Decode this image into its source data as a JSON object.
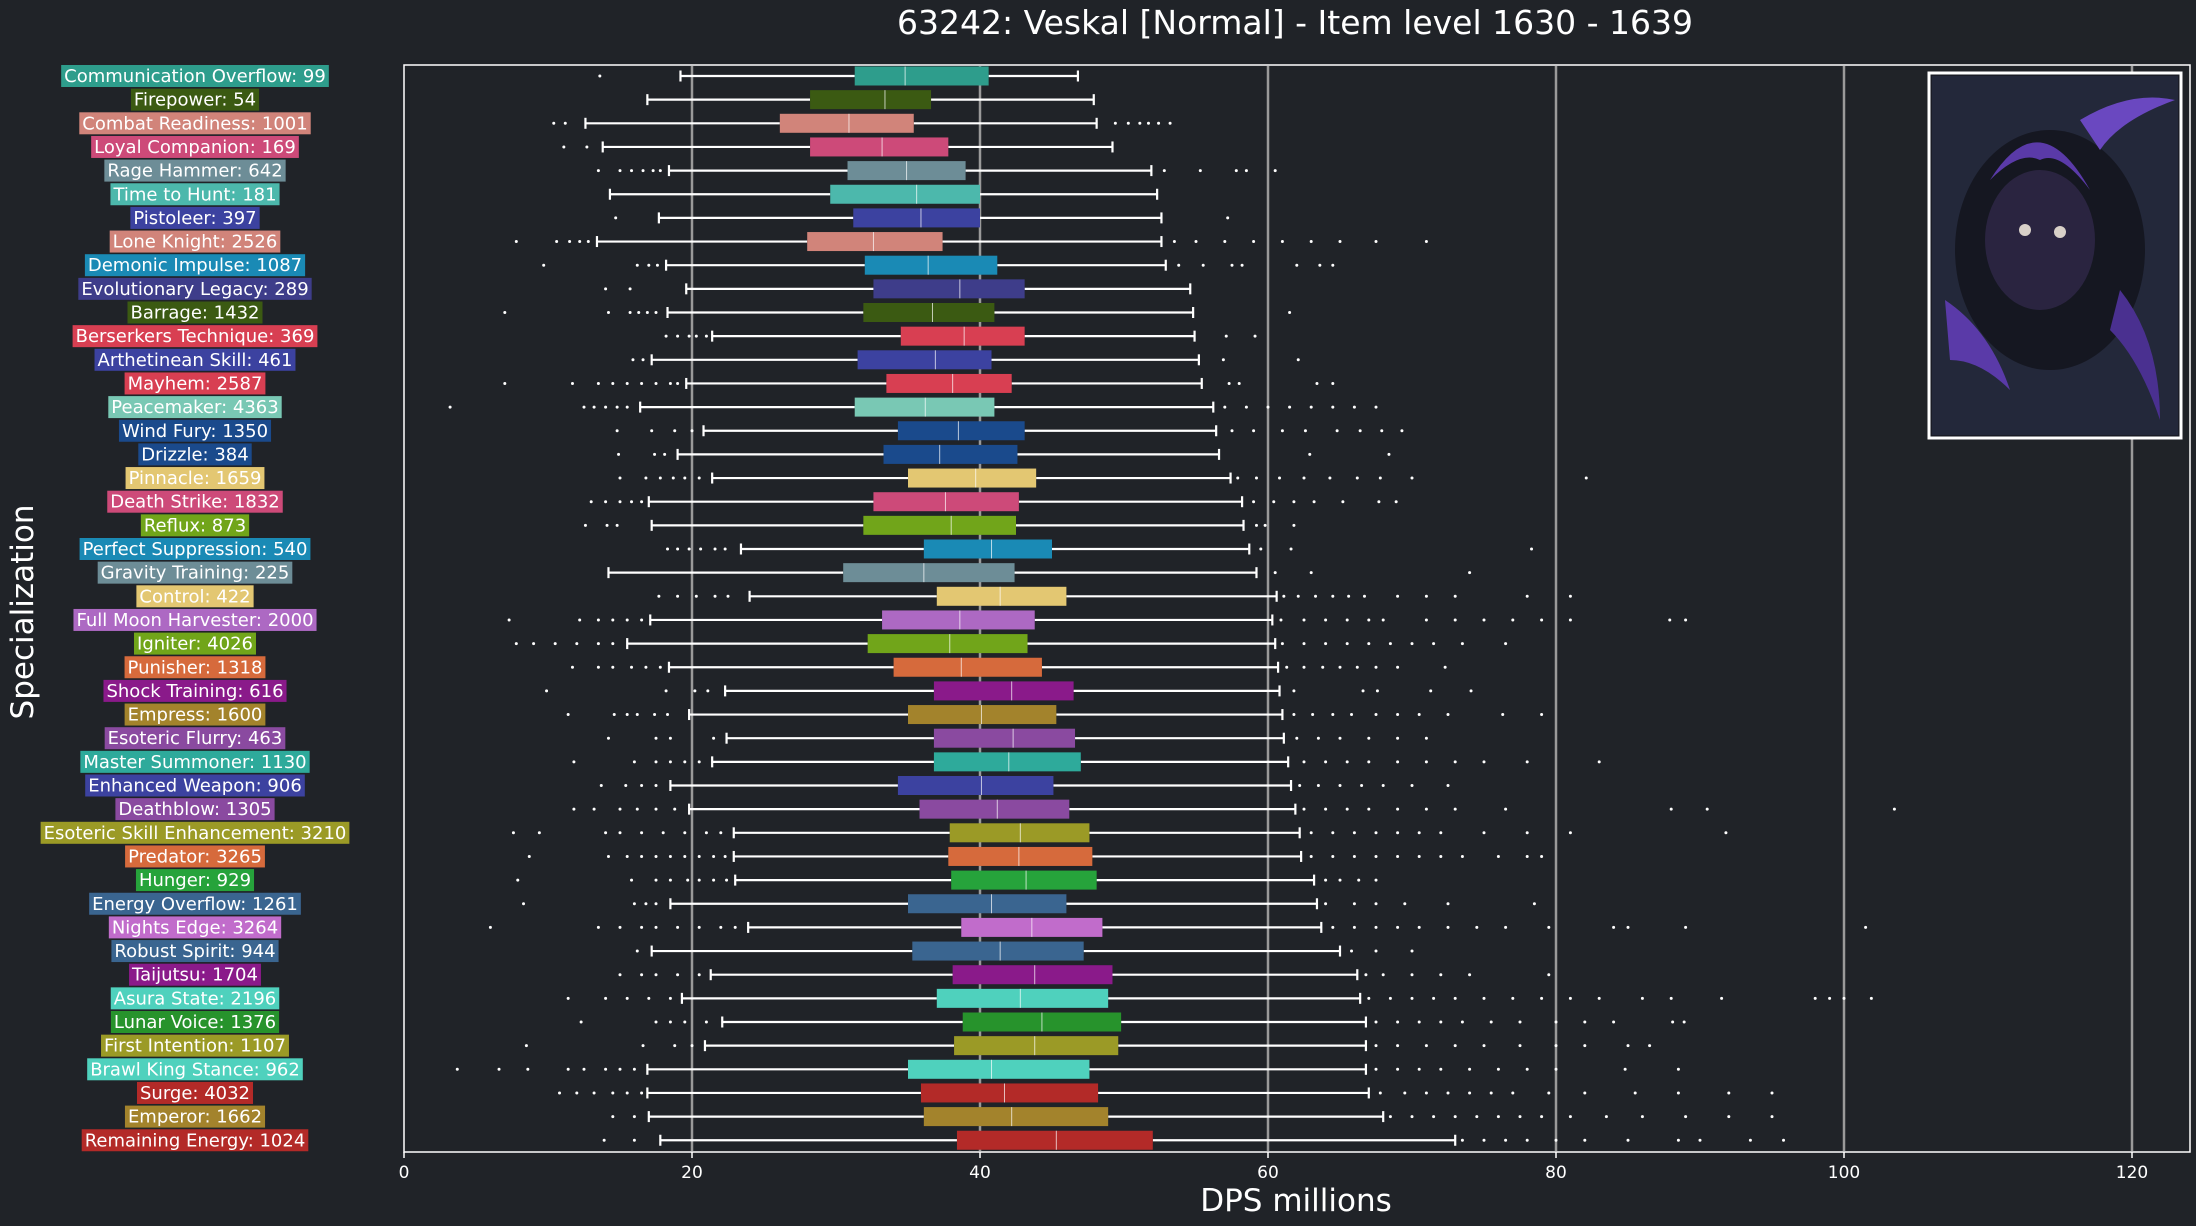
{
  "chart_data": {
    "type": "boxplot",
    "title": "63242: Veskal [Normal] - Item level 1630 - 1639",
    "xlabel": "DPS millions",
    "ylabel": "Specialization",
    "xlim": [
      0,
      124
    ],
    "xticks": [
      0,
      20,
      40,
      60,
      80,
      100,
      120
    ],
    "grid": "vertical",
    "legend": "none",
    "series": [
      {
        "name": "Communication Overflow: 99",
        "color": "#2e9d8c",
        "whislo": 19.2,
        "q1": 31.3,
        "med": 34.8,
        "q3": 40.6,
        "whishi": 46.8,
        "fliers": [
          13.6
        ]
      },
      {
        "name": "Firepower: 54",
        "color": "#3b5a12",
        "whislo": 16.9,
        "q1": 28.2,
        "med": 33.4,
        "q3": 36.6,
        "whishi": 47.9,
        "fliers": []
      },
      {
        "name": "Combat Readiness: 1001",
        "color": "#d1847a",
        "whislo": 12.6,
        "q1": 26.1,
        "med": 30.9,
        "q3": 35.4,
        "whishi": 48.1,
        "fliers": [
          10.4,
          11.2,
          49.4,
          50.3,
          51.1,
          51.7,
          52.4,
          53.2
        ]
      },
      {
        "name": "Loyal Companion: 169",
        "color": "#cd4a79",
        "whislo": 13.8,
        "q1": 28.2,
        "med": 33.2,
        "q3": 37.8,
        "whishi": 49.2,
        "fliers": [
          11.1,
          12.7
        ]
      },
      {
        "name": "Rage Hammer: 642",
        "color": "#6d8d97",
        "whislo": 18.4,
        "q1": 30.8,
        "med": 34.9,
        "q3": 39.0,
        "whishi": 51.9,
        "fliers": [
          13.5,
          15.0,
          15.8,
          16.6,
          17.3,
          17.8,
          52.8,
          55.3,
          57.8,
          58.5,
          60.5
        ]
      },
      {
        "name": "Time to Hunt: 181",
        "color": "#4cb8ac",
        "whislo": 14.3,
        "q1": 29.6,
        "med": 35.6,
        "q3": 40.0,
        "whishi": 52.3,
        "fliers": []
      },
      {
        "name": "Pistoleer: 397",
        "color": "#3c42a0",
        "whislo": 17.7,
        "q1": 31.2,
        "med": 35.9,
        "q3": 40.0,
        "whishi": 52.6,
        "fliers": [
          14.7,
          57.2
        ]
      },
      {
        "name": "Lone Knight: 2526",
        "color": "#d1847a",
        "whislo": 13.4,
        "q1": 28.0,
        "med": 32.6,
        "q3": 37.4,
        "whishi": 52.6,
        "fliers": [
          7.8,
          10.6,
          11.5,
          12.2,
          12.8,
          53.5,
          55.0,
          57.0,
          59.0,
          61.0,
          63.0,
          65.0,
          67.5,
          71.0
        ]
      },
      {
        "name": "Demonic Impulse: 1087",
        "color": "#1a8ab5",
        "whislo": 18.2,
        "q1": 32.0,
        "med": 36.4,
        "q3": 41.2,
        "whishi": 52.9,
        "fliers": [
          9.7,
          16.2,
          17.0,
          17.6,
          53.8,
          55.5,
          57.5,
          58.2,
          62.0,
          63.6,
          64.5
        ]
      },
      {
        "name": "Evolutionary Legacy: 289",
        "color": "#3e3d8a",
        "whislo": 19.6,
        "q1": 32.6,
        "med": 38.6,
        "q3": 43.1,
        "whishi": 54.6,
        "fliers": [
          14.0,
          15.7
        ]
      },
      {
        "name": "Barrage: 1432",
        "color": "#3b5a12",
        "whislo": 18.3,
        "q1": 31.9,
        "med": 36.7,
        "q3": 41.0,
        "whishi": 54.8,
        "fliers": [
          7.0,
          14.2,
          15.7,
          16.3,
          16.9,
          17.5,
          61.5
        ]
      },
      {
        "name": "Berserkers Technique: 369",
        "color": "#d83f52",
        "whislo": 21.4,
        "q1": 34.5,
        "med": 38.9,
        "q3": 43.1,
        "whishi": 54.9,
        "fliers": [
          18.2,
          19.0,
          19.8,
          20.3,
          21.0,
          57.1,
          59.1
        ]
      },
      {
        "name": "Arthetinean Skill: 461",
        "color": "#3c42a0",
        "whislo": 17.2,
        "q1": 31.5,
        "med": 36.9,
        "q3": 40.8,
        "whishi": 55.2,
        "fliers": [
          15.9,
          16.6,
          56.9,
          62.1
        ]
      },
      {
        "name": "Mayhem: 2587",
        "color": "#d83f52",
        "whislo": 19.6,
        "q1": 33.5,
        "med": 38.1,
        "q3": 42.2,
        "whishi": 55.4,
        "fliers": [
          7.0,
          11.7,
          13.5,
          14.5,
          15.5,
          16.5,
          17.5,
          18.5,
          19.0,
          57.3,
          58.0,
          63.4,
          64.5
        ]
      },
      {
        "name": "Peacemaker: 4363",
        "color": "#79c8b4",
        "whislo": 16.4,
        "q1": 31.3,
        "med": 36.2,
        "q3": 41.0,
        "whishi": 56.2,
        "fliers": [
          3.2,
          12.5,
          13.2,
          14.0,
          14.8,
          15.5,
          57.0,
          58.5,
          60.0,
          61.5,
          63.0,
          64.5,
          66.0,
          67.5
        ]
      },
      {
        "name": "Wind Fury: 1350",
        "color": "#1a4a8c",
        "whislo": 20.8,
        "q1": 34.3,
        "med": 38.5,
        "q3": 43.1,
        "whishi": 56.4,
        "fliers": [
          14.8,
          17.2,
          18.8,
          20.0,
          57.5,
          59.0,
          61.0,
          62.6,
          64.8,
          66.4,
          67.9,
          69.3
        ]
      },
      {
        "name": "Drizzle: 384",
        "color": "#1a4a8c",
        "whislo": 19.0,
        "q1": 33.3,
        "med": 37.2,
        "q3": 42.6,
        "whishi": 56.6,
        "fliers": [
          14.9,
          17.4,
          18.1,
          62.9,
          68.4
        ]
      },
      {
        "name": "Pinnacle: 1659",
        "color": "#e3c772",
        "whislo": 21.4,
        "q1": 35.0,
        "med": 39.7,
        "q3": 43.9,
        "whishi": 57.4,
        "fliers": [
          15.0,
          16.8,
          17.8,
          18.7,
          19.5,
          20.5,
          57.9,
          59.2,
          60.8,
          62.5,
          64.3,
          66.2,
          67.8,
          70.0,
          82.1
        ]
      },
      {
        "name": "Death Strike: 1832",
        "color": "#cd4a79",
        "whislo": 17.0,
        "q1": 32.6,
        "med": 37.6,
        "q3": 42.7,
        "whishi": 58.2,
        "fliers": [
          13.0,
          14.0,
          15.0,
          15.8,
          16.5,
          59.0,
          60.4,
          61.8,
          63.2,
          65.2,
          67.7,
          68.9
        ]
      },
      {
        "name": "Reflux: 873",
        "color": "#71a51a",
        "whislo": 17.2,
        "q1": 31.9,
        "med": 38.0,
        "q3": 42.5,
        "whishi": 58.3,
        "fliers": [
          12.6,
          14.1,
          14.8,
          59.2,
          59.8,
          61.8
        ]
      },
      {
        "name": "Perfect Suppression: 540",
        "color": "#1a8ab5",
        "whislo": 23.4,
        "q1": 36.1,
        "med": 40.8,
        "q3": 45.0,
        "whishi": 58.7,
        "fliers": [
          18.3,
          19.0,
          19.8,
          20.6,
          21.6,
          22.3,
          59.5,
          61.6,
          78.3
        ]
      },
      {
        "name": "Gravity Training: 225",
        "color": "#6d8d97",
        "whislo": 14.2,
        "q1": 30.5,
        "med": 36.1,
        "q3": 42.4,
        "whishi": 59.2,
        "fliers": [
          60.5,
          63.0,
          74.0
        ]
      },
      {
        "name": "Control: 422",
        "color": "#e3c772",
        "whislo": 24.0,
        "q1": 37.0,
        "med": 41.4,
        "q3": 46.0,
        "whishi": 60.6,
        "fliers": [
          17.7,
          19.0,
          20.3,
          21.6,
          22.5,
          61.1,
          62.1,
          63.3,
          64.5,
          65.6,
          66.7,
          69.0,
          71.0,
          73.0,
          78.0,
          81.0
        ]
      },
      {
        "name": "Full Moon Harvester: 2000",
        "color": "#ad69c3",
        "whislo": 17.1,
        "q1": 33.2,
        "med": 38.6,
        "q3": 43.8,
        "whishi": 60.3,
        "fliers": [
          7.3,
          12.2,
          13.5,
          14.5,
          15.5,
          16.5,
          60.9,
          62.5,
          64.0,
          65.5,
          67.0,
          68.0,
          71.0,
          73.0,
          75.0,
          77.0,
          79.0,
          81.0,
          87.9,
          89.0
        ]
      },
      {
        "name": "Igniter: 4026",
        "color": "#71a51a",
        "whislo": 15.5,
        "q1": 32.2,
        "med": 37.9,
        "q3": 43.3,
        "whishi": 60.5,
        "fliers": [
          7.8,
          9.0,
          10.5,
          12.0,
          13.5,
          14.5,
          61.0,
          62.5,
          64.0,
          65.5,
          67.0,
          68.5,
          70.0,
          71.5,
          73.5,
          76.5
        ]
      },
      {
        "name": "Punisher: 1318",
        "color": "#d66a3c",
        "whislo": 18.4,
        "q1": 34.0,
        "med": 38.7,
        "q3": 44.3,
        "whishi": 60.7,
        "fliers": [
          11.7,
          13.5,
          14.5,
          15.8,
          16.8,
          17.8,
          61.3,
          62.5,
          63.8,
          65.0,
          66.2,
          67.5,
          69.0,
          72.3
        ]
      },
      {
        "name": "Shock Training: 616",
        "color": "#8a1a8a",
        "whislo": 22.3,
        "q1": 36.8,
        "med": 42.2,
        "q3": 46.5,
        "whishi": 60.8,
        "fliers": [
          9.9,
          18.2,
          20.2,
          21.1,
          61.8,
          66.6,
          67.6,
          71.3,
          74.1
        ]
      },
      {
        "name": "Empress: 1600",
        "color": "#a3832c",
        "whislo": 19.8,
        "q1": 35.0,
        "med": 40.1,
        "q3": 45.3,
        "whishi": 61.0,
        "fliers": [
          11.4,
          14.6,
          15.5,
          16.2,
          17.4,
          18.3,
          61.8,
          63.1,
          64.5,
          65.8,
          67.5,
          69.0,
          70.5,
          72.5,
          76.3,
          79.0
        ]
      },
      {
        "name": "Esoteric Flurry: 463",
        "color": "#8a4aa0",
        "whislo": 22.4,
        "q1": 36.8,
        "med": 42.3,
        "q3": 46.6,
        "whishi": 61.1,
        "fliers": [
          14.2,
          17.5,
          18.5,
          21.5,
          62.0,
          63.5,
          65.0,
          67.0,
          69.0,
          71.0
        ]
      },
      {
        "name": "Master Summoner: 1130",
        "color": "#2eaa9b",
        "whislo": 21.4,
        "q1": 36.8,
        "med": 42.0,
        "q3": 47.0,
        "whishi": 61.4,
        "fliers": [
          11.8,
          16.0,
          17.5,
          18.5,
          19.5,
          20.5,
          62.5,
          64.0,
          65.5,
          67.0,
          69.0,
          71.0,
          73.0,
          75.0,
          78.0,
          83.0
        ]
      },
      {
        "name": "Enhanced Weapon: 906",
        "color": "#3c42a0",
        "whislo": 18.5,
        "q1": 34.3,
        "med": 40.1,
        "q3": 45.1,
        "whishi": 61.6,
        "fliers": [
          13.7,
          15.4,
          16.5,
          17.5,
          62.2,
          63.5,
          65.0,
          66.5,
          68.0,
          70.0,
          72.5
        ]
      },
      {
        "name": "Deathblow: 1305",
        "color": "#8a4aa0",
        "whislo": 19.8,
        "q1": 35.8,
        "med": 41.2,
        "q3": 46.2,
        "whishi": 61.9,
        "fliers": [
          11.8,
          13.2,
          15.0,
          16.2,
          17.5,
          18.8,
          62.5,
          64.0,
          65.5,
          67.0,
          69.0,
          71.0,
          73.0,
          76.5,
          88.0,
          90.5,
          103.5
        ]
      },
      {
        "name": "Esoteric Skill Enhancement: 3210",
        "color": "#9b9a26",
        "whislo": 22.9,
        "q1": 37.9,
        "med": 42.8,
        "q3": 47.6,
        "whishi": 62.2,
        "fliers": [
          7.6,
          9.4,
          14.0,
          15.0,
          16.5,
          18.0,
          19.5,
          21.0,
          22.0,
          63.0,
          64.5,
          66.0,
          67.5,
          69.0,
          70.5,
          72.0,
          75.0,
          78.0,
          81.0,
          91.8
        ]
      },
      {
        "name": "Predator: 3265",
        "color": "#d66a3c",
        "whislo": 22.9,
        "q1": 37.8,
        "med": 42.7,
        "q3": 47.8,
        "whishi": 62.3,
        "fliers": [
          8.7,
          14.2,
          15.5,
          16.5,
          17.5,
          18.5,
          19.5,
          20.5,
          21.5,
          22.3,
          63.0,
          64.5,
          66.0,
          67.5,
          69.0,
          70.5,
          72.0,
          73.5,
          76.0,
          78.0,
          79.0
        ]
      },
      {
        "name": "Hunger: 929",
        "color": "#26a33b",
        "whislo": 23.0,
        "q1": 38.0,
        "med": 43.2,
        "q3": 48.1,
        "whishi": 63.2,
        "fliers": [
          7.9,
          15.8,
          17.5,
          18.5,
          19.7,
          20.5,
          21.5,
          22.4,
          64.0,
          65.0,
          66.3,
          67.5
        ]
      },
      {
        "name": "Energy Overflow: 1261",
        "color": "#3a6590",
        "whislo": 18.5,
        "q1": 35.0,
        "med": 40.8,
        "q3": 46.0,
        "whishi": 63.4,
        "fliers": [
          8.3,
          16.0,
          16.8,
          17.5,
          64.0,
          66.0,
          67.5,
          69.5,
          72.5,
          78.5
        ]
      },
      {
        "name": "Nights Edge: 3264",
        "color": "#c16ccb",
        "whislo": 23.9,
        "q1": 38.7,
        "med": 43.6,
        "q3": 48.5,
        "whishi": 63.7,
        "fliers": [
          6.0,
          13.5,
          15.0,
          16.5,
          17.5,
          19.0,
          20.5,
          22.0,
          23.0,
          64.5,
          66.0,
          67.5,
          69.0,
          70.5,
          72.5,
          74.5,
          76.5,
          79.5,
          84.0,
          85.0,
          89.0,
          101.5
        ]
      },
      {
        "name": "Robust Spirit: 944",
        "color": "#3a6590",
        "whislo": 17.2,
        "q1": 35.3,
        "med": 41.4,
        "q3": 47.2,
        "whishi": 65.0,
        "fliers": [
          16.2,
          65.8,
          67.5,
          70.0
        ]
      },
      {
        "name": "Taijutsu: 1704",
        "color": "#8a1a8a",
        "whislo": 21.3,
        "q1": 38.1,
        "med": 43.8,
        "q3": 49.2,
        "whishi": 66.2,
        "fliers": [
          15.0,
          16.5,
          17.5,
          19.0,
          20.5,
          66.8,
          68.0,
          70.0,
          72.0,
          74.0,
          79.5
        ]
      },
      {
        "name": "Asura State: 2196",
        "color": "#4fd1bd",
        "whislo": 19.3,
        "q1": 37.0,
        "med": 42.8,
        "q3": 48.9,
        "whishi": 66.4,
        "fliers": [
          11.4,
          14.0,
          15.5,
          17.0,
          18.5,
          67.0,
          68.5,
          70.0,
          71.5,
          73.0,
          75.0,
          77.0,
          79.0,
          81.0,
          83.0,
          86.0,
          88.0,
          91.5,
          98.0,
          99.0,
          100.0,
          101.9
        ]
      },
      {
        "name": "Lunar Voice: 1376",
        "color": "#27932c",
        "whislo": 22.1,
        "q1": 38.8,
        "med": 44.3,
        "q3": 49.8,
        "whishi": 66.8,
        "fliers": [
          12.3,
          17.5,
          18.5,
          19.5,
          21.0,
          67.5,
          69.0,
          70.5,
          72.0,
          73.5,
          75.5,
          77.5,
          80.0,
          82.0,
          84.0,
          88.1,
          88.9
        ]
      },
      {
        "name": "First Intention: 1107",
        "color": "#9b9a26",
        "whislo": 20.9,
        "q1": 38.2,
        "med": 43.8,
        "q3": 49.6,
        "whishi": 66.8,
        "fliers": [
          8.5,
          16.6,
          18.8,
          20.0,
          67.5,
          69.0,
          71.0,
          73.0,
          75.0,
          77.5,
          80.0,
          82.0,
          85.0,
          86.5
        ]
      },
      {
        "name": "Brawl King Stance: 962",
        "color": "#4fd1bd",
        "whislo": 16.9,
        "q1": 35.0,
        "med": 40.8,
        "q3": 47.6,
        "whishi": 66.8,
        "fliers": [
          3.7,
          6.6,
          8.6,
          11.4,
          12.5,
          14.0,
          15.0,
          16.0,
          67.5,
          69.0,
          70.5,
          72.0,
          74.0,
          76.0,
          78.0,
          80.0,
          84.8,
          88.5
        ]
      },
      {
        "name": "Surge: 4032",
        "color": "#b32a28",
        "whislo": 16.9,
        "q1": 35.9,
        "med": 41.7,
        "q3": 48.2,
        "whishi": 67.0,
        "fliers": [
          10.8,
          12.0,
          13.2,
          14.5,
          15.5,
          16.5,
          67.8,
          69.5,
          71.0,
          72.5,
          74.0,
          75.5,
          77.0,
          79.5,
          82.0,
          85.5,
          88.5,
          92.0,
          95.0
        ]
      },
      {
        "name": "Emperor: 1662",
        "color": "#a3832c",
        "whislo": 17.0,
        "q1": 36.1,
        "med": 42.2,
        "q3": 48.9,
        "whishi": 68.0,
        "fliers": [
          14.5,
          16.0,
          68.5,
          70.0,
          71.5,
          73.0,
          74.5,
          76.0,
          77.5,
          79.0,
          81.0,
          83.5,
          86.0,
          89.0,
          92.0,
          95.0
        ]
      },
      {
        "name": "Remaining Energy: 1024",
        "color": "#b32a28",
        "whislo": 17.8,
        "q1": 38.4,
        "med": 45.3,
        "q3": 52.0,
        "whishi": 73.0,
        "fliers": [
          13.9,
          16.0,
          73.5,
          75.0,
          76.5,
          78.0,
          80.0,
          82.0,
          85.0,
          88.5,
          90.0,
          93.5,
          95.8
        ]
      }
    ]
  }
}
